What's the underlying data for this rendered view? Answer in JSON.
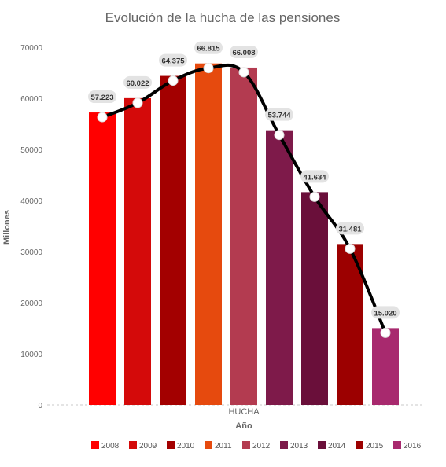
{
  "chart_data": {
    "type": "bar",
    "title": "Evolución de la hucha de las pensiones",
    "xlabel": "Año",
    "ylabel": "Millones",
    "categories": [
      "HUCHA"
    ],
    "ylim": [
      0,
      70000
    ],
    "yticks": [
      0,
      10000,
      20000,
      30000,
      40000,
      50000,
      60000,
      70000
    ],
    "legend_position": "bottom",
    "series": [
      {
        "name": "2008",
        "values": [
          57223
        ],
        "label": "57.223",
        "color": "#ff0000"
      },
      {
        "name": "2009",
        "values": [
          60022
        ],
        "label": "60.022",
        "color": "#d40a0a"
      },
      {
        "name": "2010",
        "values": [
          64375
        ],
        "label": "64.375",
        "color": "#a30000"
      },
      {
        "name": "2011",
        "values": [
          66815
        ],
        "label": "66.815",
        "color": "#e64a0e"
      },
      {
        "name": "2012",
        "values": [
          66008
        ],
        "label": "66.008",
        "color": "#b33b50"
      },
      {
        "name": "2013",
        "values": [
          53744
        ],
        "label": "53.744",
        "color": "#7e1a4a"
      },
      {
        "name": "2014",
        "values": [
          41634
        ],
        "label": "41.634",
        "color": "#6a0f3a"
      },
      {
        "name": "2015",
        "values": [
          31481
        ],
        "label": "31.481",
        "color": "#9c0000"
      },
      {
        "name": "2016",
        "values": [
          15020
        ],
        "label": "15.020",
        "color": "#a8296e"
      }
    ],
    "trend_line": {
      "color": "#000000",
      "marker_color": "#ffffff"
    }
  }
}
